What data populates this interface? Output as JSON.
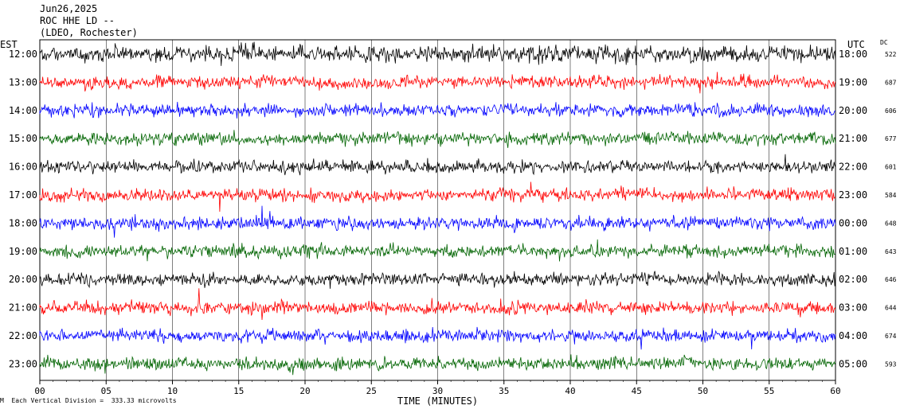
{
  "header": {
    "date": "Jun26,2025",
    "station": "ROC HHE LD --",
    "network": "(LDEO, Rochester)"
  },
  "left_axis_label": "EST",
  "right_axis_label": "UTC",
  "dc_label": "DC",
  "footer_note": "Each Vertical Division =  333.33 microvolts",
  "footer_mark": "M",
  "colors": {
    "black": "#000000",
    "red": "#ff0000",
    "blue": "#0000ff",
    "green": "#006400",
    "grid": "#000000"
  },
  "chart_data": {
    "type": "line",
    "title": "",
    "xlabel": "TIME (MINUTES)",
    "x_ticks": [
      "00",
      "05",
      "10",
      "15",
      "20",
      "25",
      "30",
      "35",
      "40",
      "45",
      "50",
      "55",
      "60"
    ],
    "xlim": [
      0,
      60
    ],
    "grid": true,
    "rows": [
      {
        "est": "12:00",
        "utc": "18:00",
        "dc": "522",
        "color": "black"
      },
      {
        "est": "13:00",
        "utc": "19:00",
        "dc": "687",
        "color": "red"
      },
      {
        "est": "14:00",
        "utc": "20:00",
        "dc": "606",
        "color": "blue"
      },
      {
        "est": "15:00",
        "utc": "21:00",
        "dc": "677",
        "color": "green"
      },
      {
        "est": "16:00",
        "utc": "22:00",
        "dc": "601",
        "color": "black"
      },
      {
        "est": "17:00",
        "utc": "23:00",
        "dc": "584",
        "color": "red"
      },
      {
        "est": "18:00",
        "utc": "00:00",
        "dc": "648",
        "color": "blue"
      },
      {
        "est": "19:00",
        "utc": "01:00",
        "dc": "643",
        "color": "green"
      },
      {
        "est": "20:00",
        "utc": "02:00",
        "dc": "646",
        "color": "black"
      },
      {
        "est": "21:00",
        "utc": "03:00",
        "dc": "644",
        "color": "red"
      },
      {
        "est": "22:00",
        "utc": "04:00",
        "dc": "674",
        "color": "blue"
      },
      {
        "est": "23:00",
        "utc": "05:00",
        "dc": "593",
        "color": "green"
      }
    ]
  }
}
